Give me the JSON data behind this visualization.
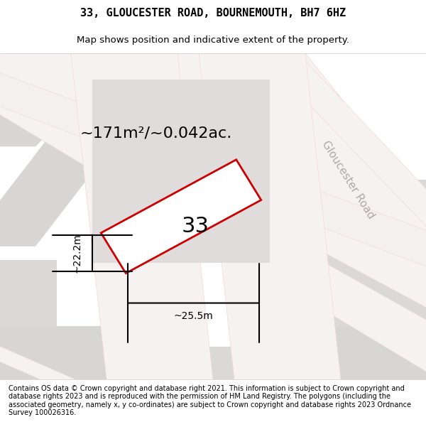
{
  "title": "33, GLOUCESTER ROAD, BOURNEMOUTH, BH7 6HZ",
  "subtitle": "Map shows position and indicative extent of the property.",
  "footer": "Contains OS data © Crown copyright and database right 2021. This information is subject to Crown copyright and database rights 2023 and is reproduced with the permission of HM Land Registry. The polygons (including the associated geometry, namely x, y co-ordinates) are subject to Crown copyright and database rights 2023 Ordnance Survey 100026316.",
  "area_label": "~171m²/~0.042ac.",
  "number_label": "33",
  "width_label": "~25.5m",
  "height_label": "~22.2m",
  "bg_color": "#f0eeee",
  "map_bg": "#e8e6e6",
  "block_color": "#d9d6d6",
  "road_color": "#f5f0f0",
  "road_border_color": "#e8c8c8",
  "property_fill": "#ffffff",
  "property_edge": "#cc0000",
  "street_label": "Gloucester Road",
  "street_label_color": "#aaaaaa"
}
